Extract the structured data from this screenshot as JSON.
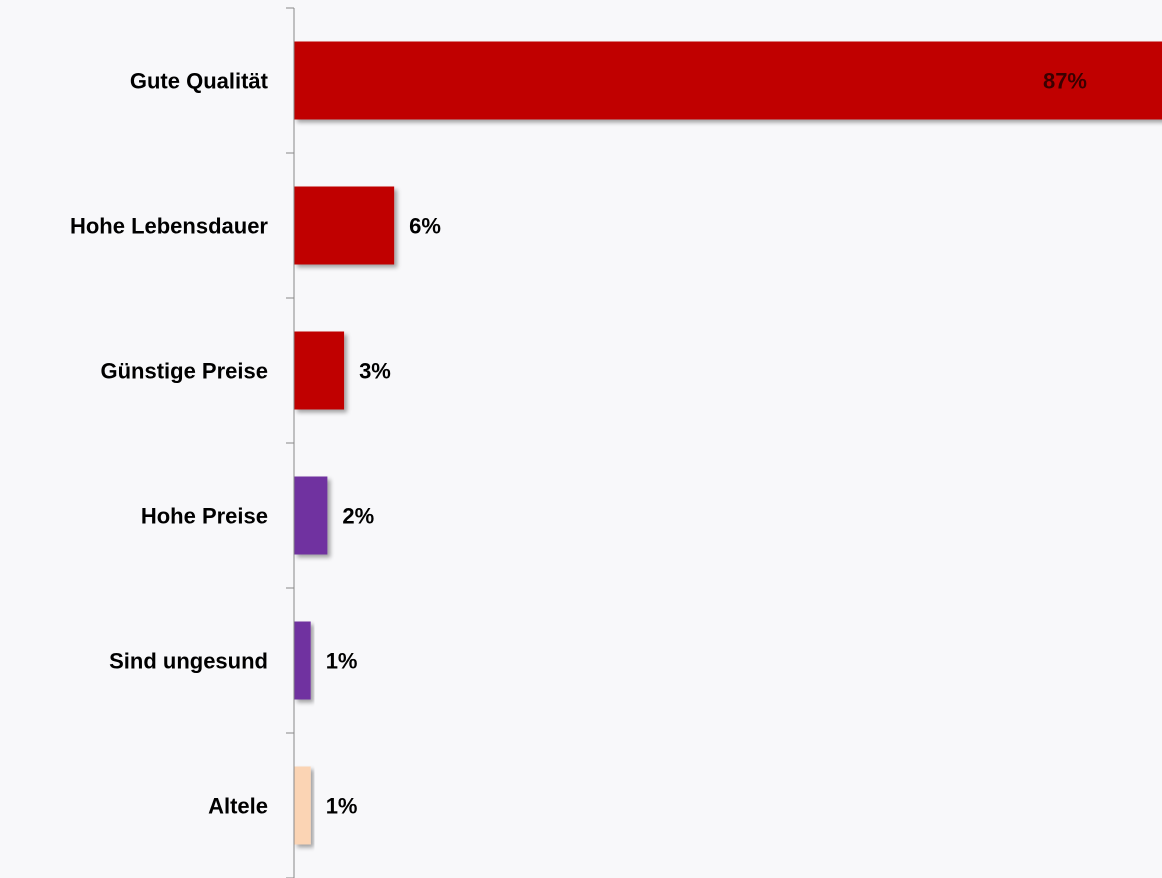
{
  "chart_data": {
    "type": "bar",
    "orientation": "horizontal",
    "categories": [
      "Gute Qualität",
      "Hohe Lebensdauer",
      "Günstige Preise",
      "Hohe Preise",
      "Sind ungesund",
      "Altele"
    ],
    "values": [
      87,
      6,
      3,
      2,
      1,
      1
    ],
    "value_labels": [
      "87%",
      "6%",
      "3%",
      "2%",
      "1%",
      "1%"
    ],
    "colors": [
      "#c00000",
      "#c00000",
      "#c00000",
      "#7030a0",
      "#7030a0",
      "#fbd4b4"
    ],
    "xlim": [
      0,
      52
    ]
  }
}
